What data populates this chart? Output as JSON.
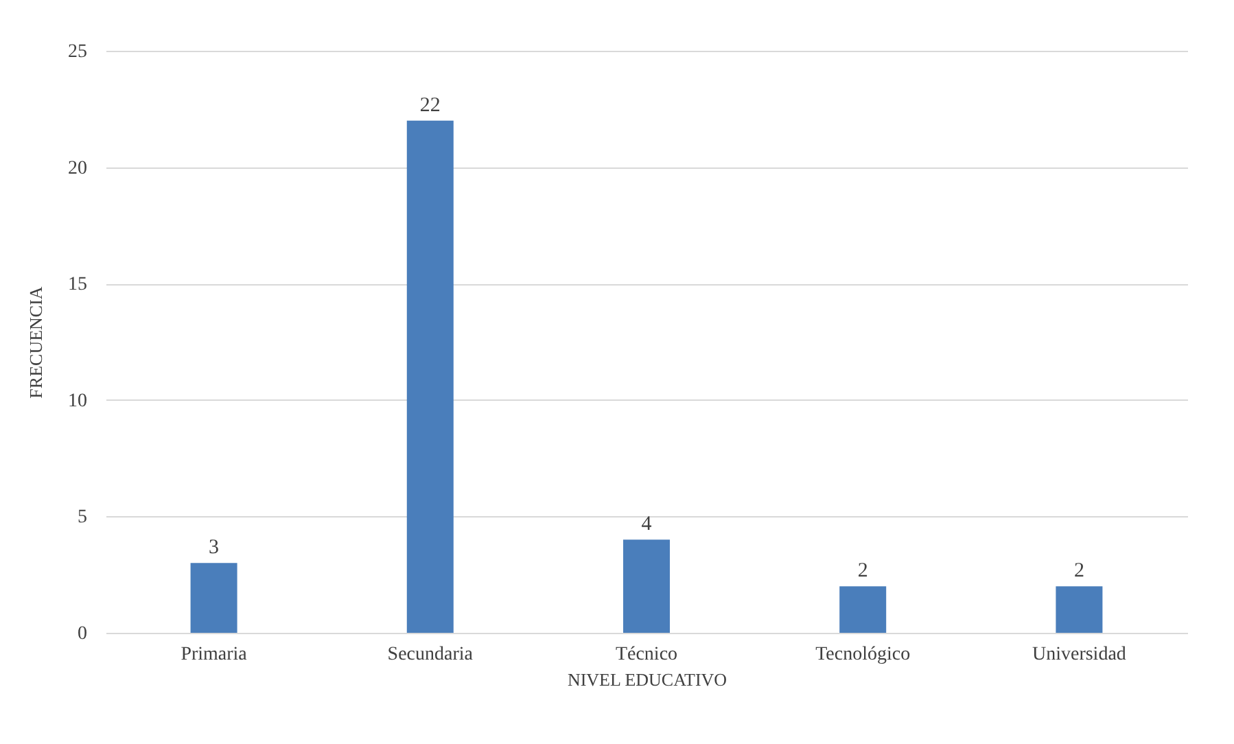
{
  "chart_data": {
    "type": "bar",
    "xlabel": "NIVEL EDUCATIVO",
    "ylabel": "FRECUENCIA",
    "categories": [
      "Primaria",
      "Secundaria",
      "Técnico",
      "Tecnológico",
      "Universidad"
    ],
    "values": [
      3,
      22,
      4,
      2,
      2
    ],
    "color": "#4a7ebb",
    "ylim": [
      0,
      25
    ],
    "yticks": [
      0,
      5,
      10,
      15,
      20,
      25
    ],
    "grid": "y",
    "data_labels": true
  }
}
